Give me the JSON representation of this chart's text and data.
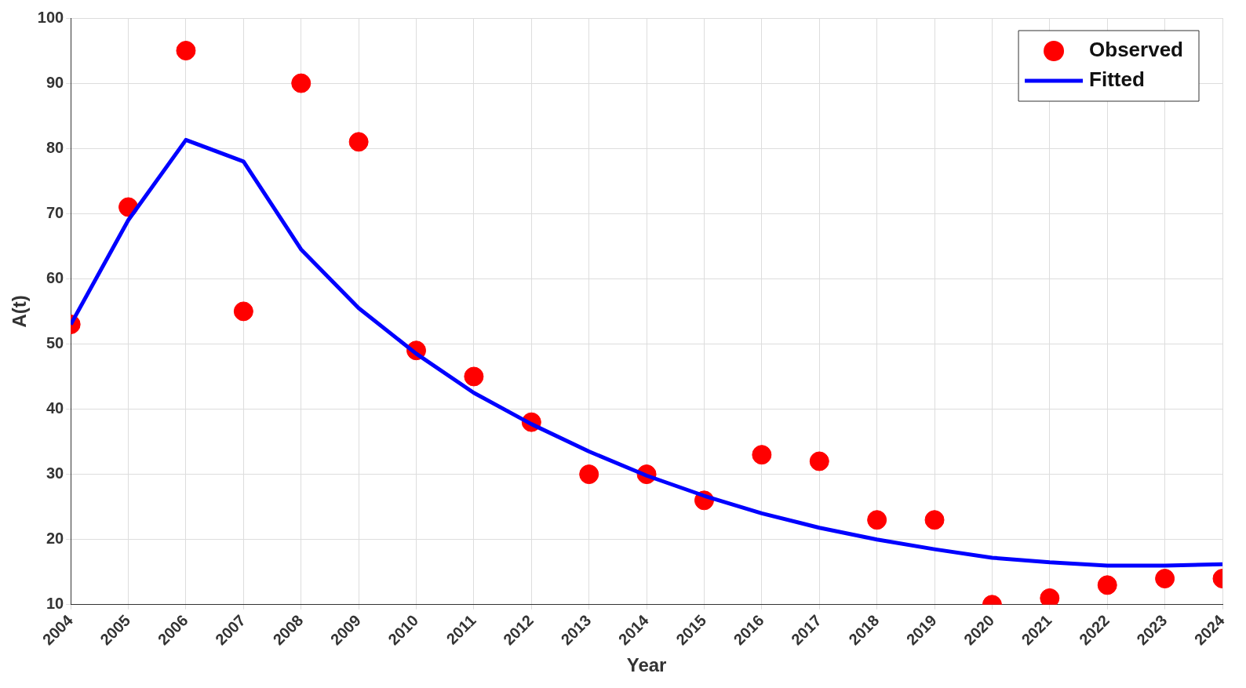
{
  "chart_data": {
    "type": "scatter",
    "xlabel": "Year",
    "ylabel": "A(t)",
    "x": [
      2004,
      2005,
      2006,
      2007,
      2008,
      2009,
      2010,
      2011,
      2012,
      2013,
      2014,
      2015,
      2016,
      2017,
      2018,
      2019,
      2020,
      2021,
      2022,
      2023,
      2024
    ],
    "series": [
      {
        "name": "Observed",
        "type": "scatter",
        "color": "#ff0000",
        "marker": "circle",
        "values": [
          53,
          71,
          95,
          55,
          90,
          81,
          49,
          45,
          38,
          30,
          30,
          26,
          33,
          32,
          23,
          23,
          10,
          11,
          13,
          14,
          14
        ]
      },
      {
        "name": "Fitted",
        "type": "line",
        "color": "#0000ff",
        "marker": "none",
        "line_style": "solid",
        "values": [
          53,
          69,
          81.3,
          78,
          64.5,
          55.5,
          48.5,
          42.5,
          37.7,
          33.5,
          29.8,
          26.7,
          24,
          21.8,
          20,
          18.5,
          17.2,
          16.5,
          16,
          16,
          16.2
        ]
      }
    ],
    "xlim": [
      2004,
      2024
    ],
    "xticks": [
      2004,
      2005,
      2006,
      2007,
      2008,
      2009,
      2010,
      2011,
      2012,
      2013,
      2014,
      2015,
      2016,
      2017,
      2018,
      2019,
      2020,
      2021,
      2022,
      2023,
      2024
    ],
    "ylim": [
      10,
      100
    ],
    "yticks": [
      10,
      20,
      30,
      40,
      50,
      60,
      70,
      80,
      90,
      100
    ],
    "grid": true,
    "legend": "top right"
  }
}
